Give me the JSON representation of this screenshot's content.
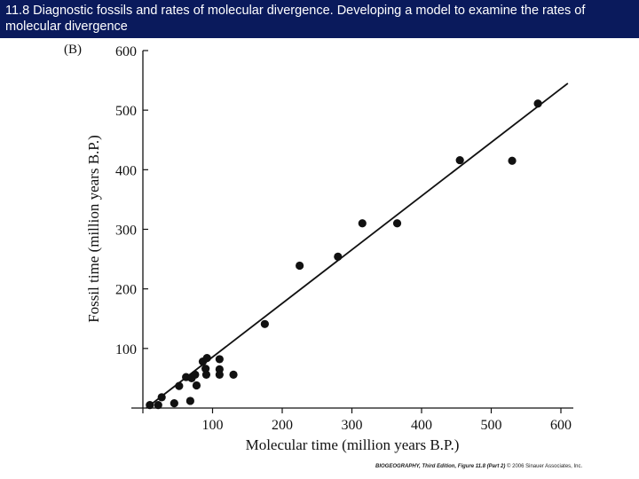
{
  "header": {
    "title": "11.8  Diagnostic fossils and rates of molecular divergence. Developing a model to examine the rates of molecular divergence"
  },
  "colors": {
    "header_bg": "#0a1a5c",
    "header_text": "#ffffff",
    "ink": "#111111"
  },
  "chart_data": {
    "type": "scatter",
    "panel_label": "(B)",
    "xlabel": "Molecular time (million years B.P.)",
    "ylabel": "Fossil time (million years B.P.)",
    "xlim": [
      0,
      600
    ],
    "ylim": [
      0,
      600
    ],
    "xticks": [
      0,
      100,
      200,
      300,
      400,
      500,
      600
    ],
    "yticks": [
      100,
      200,
      300,
      400,
      500,
      600
    ],
    "grid": false,
    "points": [
      {
        "x": 10,
        "y": 5
      },
      {
        "x": 22,
        "y": 5
      },
      {
        "x": 27,
        "y": 18
      },
      {
        "x": 45,
        "y": 8
      },
      {
        "x": 52,
        "y": 37
      },
      {
        "x": 62,
        "y": 52
      },
      {
        "x": 68,
        "y": 12
      },
      {
        "x": 70,
        "y": 50
      },
      {
        "x": 75,
        "y": 56
      },
      {
        "x": 77,
        "y": 38
      },
      {
        "x": 86,
        "y": 78
      },
      {
        "x": 90,
        "y": 66
      },
      {
        "x": 91,
        "y": 56
      },
      {
        "x": 92,
        "y": 84
      },
      {
        "x": 110,
        "y": 82
      },
      {
        "x": 110,
        "y": 65
      },
      {
        "x": 110,
        "y": 56
      },
      {
        "x": 130,
        "y": 56
      },
      {
        "x": 175,
        "y": 141
      },
      {
        "x": 225,
        "y": 239
      },
      {
        "x": 280,
        "y": 254
      },
      {
        "x": 315,
        "y": 310
      },
      {
        "x": 365,
        "y": 310
      },
      {
        "x": 455,
        "y": 416
      },
      {
        "x": 530,
        "y": 415
      },
      {
        "x": 567,
        "y": 511
      }
    ],
    "regression_line": {
      "x": [
        5,
        610
      ],
      "y": [
        0,
        545
      ]
    }
  },
  "footer": {
    "credit_book": "BIOGEOGRAPHY, Third Edition, Figure 11.8 (Part 2)",
    "credit_rest": "© 2006 Sinauer Associates, Inc."
  }
}
